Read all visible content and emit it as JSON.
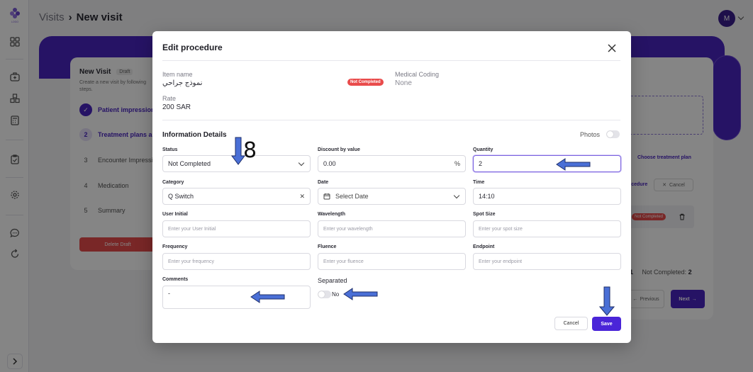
{
  "breadcrumb": {
    "parent": "Visits",
    "current": "New visit"
  },
  "user": {
    "avatar_initial": "M"
  },
  "logo": {
    "text": "LOGO"
  },
  "background": {
    "visit_title": "New Visit",
    "draft_badge": "Draft",
    "visit_sub": "Create a new visit by following steps.",
    "steps": [
      {
        "number": "✓",
        "label": "Patient impressions"
      },
      {
        "number": "2",
        "label": "Treatment plans an"
      },
      {
        "number": "3",
        "label": "Encounter Impressi"
      },
      {
        "number": "4",
        "label": "Medication"
      },
      {
        "number": "5",
        "label": "Summary"
      }
    ],
    "delete_draft": "Delete Draft",
    "choose_plan": "Choose treatment plan",
    "procedure_link": "ocedure",
    "cancel": "Cancel",
    "not_completed": "Not Completed",
    "count_completed_value": "1",
    "count_not_completed_label": "Not Completed:",
    "count_not_completed_value": "2",
    "previous": "Previous",
    "next": "Next"
  },
  "modal": {
    "title": "Edit procedure",
    "item_name_label": "Item name",
    "item_name_value": "نموذج جراحي",
    "status_badge": "Not Completed",
    "medical_coding_label": "Medical Coding",
    "medical_coding_value": "None",
    "rate_label": "Rate",
    "rate_value": "200 SAR",
    "section_title": "Information Details",
    "photos_label": "Photos",
    "fields": {
      "status": {
        "label": "Status",
        "value": "Not Completed"
      },
      "discount": {
        "label": "Discount by value",
        "value": "0.00",
        "unit": "%"
      },
      "quantity": {
        "label": "Quantity",
        "value": "2"
      },
      "category": {
        "label": "Category",
        "value": "Q Switch"
      },
      "date": {
        "label": "Date",
        "placeholder": "Select Date"
      },
      "time": {
        "label": "Time",
        "value": "14:10"
      },
      "user_initial": {
        "label": "User Initial",
        "placeholder": "Enter your User Initial"
      },
      "wavelength": {
        "label": "Wavelength",
        "placeholder": "Enter your wavelength"
      },
      "spot_size": {
        "label": "Spot Size",
        "placeholder": "Enter your spot size"
      },
      "frequency": {
        "label": "Frequency",
        "placeholder": "Enter your frequency"
      },
      "fluence": {
        "label": "Fluence",
        "placeholder": "Enter your fluence"
      },
      "endpoint": {
        "label": "Endpoint",
        "placeholder": "Enter your endpoint"
      },
      "comments": {
        "label": "Comments",
        "value": "-"
      },
      "separated": {
        "label": "Separated",
        "value": "No"
      }
    },
    "cancel_label": "Cancel",
    "save_label": "Save"
  },
  "annotation": {
    "number": "8"
  },
  "colors": {
    "primary": "#4a25c2",
    "danger": "#e94b4b",
    "arrow": "#4a6fd6"
  }
}
